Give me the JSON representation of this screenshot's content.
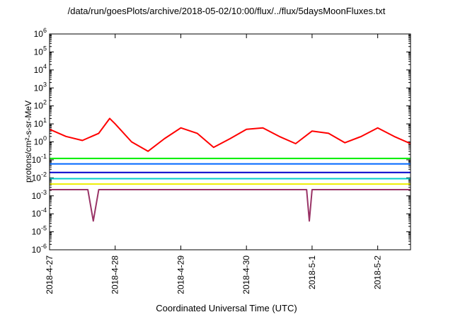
{
  "chart_data": {
    "type": "line",
    "title": "/data/run/goesPlots/archive/2018-05-02/10:00/flux/../flux/5daysMoonFluxes.txt",
    "xlabel": "Coordinated Universal Time (UTC)",
    "ylabel": "protons/cm²-s-sr-MeV",
    "y_scale": "log",
    "ylim": [
      1e-06,
      1000000.0
    ],
    "xlim": [
      "2018-04-27 00:00",
      "2018-05-02 12:00"
    ],
    "grid": false,
    "legend": "none",
    "x_tick_labels": [
      "2018-4-27",
      "2018-4-28",
      "2018-4-29",
      "2018-4-30",
      "2018-5-1",
      "2018-5-2"
    ],
    "y_tick_labels": [
      "10-6",
      "10-5",
      "10-4",
      "10-3",
      "10-2",
      "10-1",
      "100",
      "101",
      "102",
      "103",
      "104",
      "105",
      "106"
    ],
    "series": [
      {
        "color": "#ff0000",
        "x": [
          "2018-04-27 00:00",
          "2018-04-27 06:00",
          "2018-04-27 12:00",
          "2018-04-27 18:00",
          "2018-04-27 22:00",
          "2018-04-28 00:00",
          "2018-04-28 06:00",
          "2018-04-28 12:00",
          "2018-04-28 18:00",
          "2018-04-29 00:00",
          "2018-04-29 06:00",
          "2018-04-29 12:00",
          "2018-04-29 18:00",
          "2018-04-30 00:00",
          "2018-04-30 06:00",
          "2018-04-30 12:00",
          "2018-04-30 18:00",
          "2018-05-01 00:00",
          "2018-05-01 06:00",
          "2018-05-01 12:00",
          "2018-05-01 18:00",
          "2018-05-02 00:00",
          "2018-05-02 06:00",
          "2018-05-02 12:00"
        ],
        "values": [
          5,
          2,
          1.2,
          3,
          20,
          10,
          1,
          0.3,
          1.5,
          6,
          3,
          0.5,
          1.5,
          5,
          6,
          2,
          0.8,
          4,
          3,
          0.9,
          2,
          6,
          2,
          0.8
        ]
      },
      {
        "color": "#00ee00",
        "x": [
          "2018-04-27 00:00",
          "2018-05-02 12:00"
        ],
        "values": [
          0.12,
          0.12
        ]
      },
      {
        "color": "#0066ff",
        "x": [
          "2018-04-27 00:00",
          "2018-05-02 12:00"
        ],
        "values": [
          0.06,
          0.06
        ]
      },
      {
        "color": "#0000cc",
        "x": [
          "2018-04-27 00:00",
          "2018-05-02 12:00"
        ],
        "values": [
          0.02,
          0.02
        ]
      },
      {
        "color": "#00cccc",
        "x": [
          "2018-04-27 00:00",
          "2018-05-02 12:00"
        ],
        "values": [
          0.009,
          0.009
        ]
      },
      {
        "color": "#eeee00",
        "x": [
          "2018-04-27 00:00",
          "2018-05-02 12:00"
        ],
        "values": [
          0.0045,
          0.0045
        ]
      },
      {
        "color": "#993366",
        "x": [
          "2018-04-27 00:00",
          "2018-04-27 10:00",
          "2018-04-27 14:00",
          "2018-04-27 16:00",
          "2018-04-27 18:00",
          "2018-04-28 12:00",
          "2018-04-30 22:00",
          "2018-04-30 23:00",
          "2018-05-01 00:00",
          "2018-05-02 12:00"
        ],
        "values": [
          0.0022,
          0.0022,
          0.0022,
          4e-05,
          0.0022,
          0.0022,
          0.0022,
          4e-05,
          0.0022,
          0.0022
        ]
      }
    ]
  }
}
